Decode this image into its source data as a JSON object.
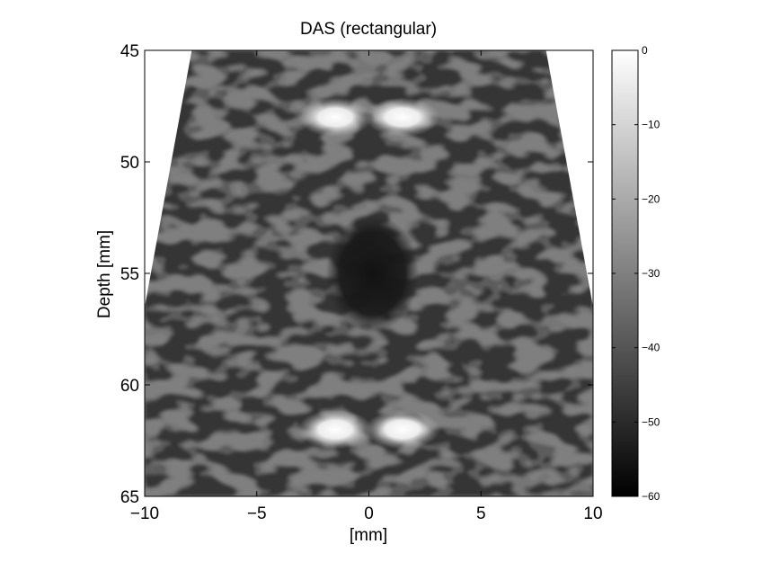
{
  "chart_data": {
    "type": "heatmap",
    "title": "DAS (rectangular)",
    "xlabel": "[mm]",
    "ylabel": "Depth [mm]",
    "xlim": [
      -10,
      10
    ],
    "ylim": [
      65,
      45
    ],
    "y_axis_reversed": true,
    "xticks": [
      -10,
      -5,
      0,
      5,
      10
    ],
    "xtick_labels": [
      "−10",
      "−5",
      "0",
      "5",
      "10"
    ],
    "yticks": [
      45,
      50,
      55,
      60,
      65
    ],
    "ytick_labels": [
      "45",
      "50",
      "55",
      "60",
      "65"
    ],
    "colormap": "gray",
    "colorbar": {
      "range": [
        -60,
        0
      ],
      "ticks": [
        0,
        -10,
        -20,
        -30,
        -40,
        -50,
        -60
      ],
      "tick_labels": [
        "0",
        "−10",
        "−20",
        "−30",
        "−40",
        "−50",
        "−60"
      ],
      "placement": "right"
    },
    "image_region": {
      "description_shape": "trapezoid sector, narrower at top",
      "top_edge_x": [
        -7.9,
        7.9
      ],
      "bottom_edge_x": [
        -10,
        10
      ],
      "full_width_from_depth": 56.5
    },
    "bright_targets": [
      {
        "x": -1.5,
        "depth": 48.0
      },
      {
        "x": 1.5,
        "depth": 48.0
      },
      {
        "x": -1.5,
        "depth": 62.0
      },
      {
        "x": 1.5,
        "depth": 62.0
      }
    ],
    "anechoic_cyst": {
      "x": 0.0,
      "depth": 55.0
    },
    "grid": false
  }
}
